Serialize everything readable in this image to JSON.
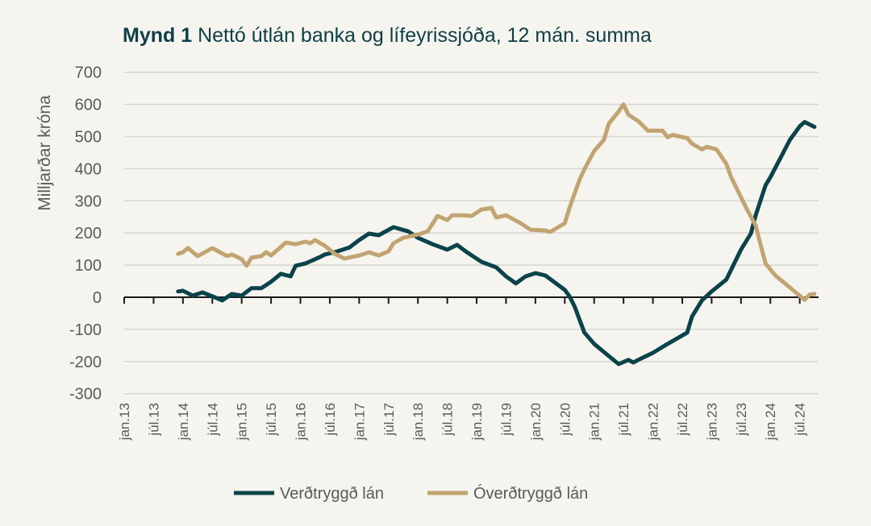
{
  "title": {
    "prefix": "Mynd 1",
    "text": "Nettó útlán banka og lífeyrissjóða, 12 mán. summa"
  },
  "chart_data": {
    "type": "line",
    "title": "Nettó útlán banka og lífeyrissjóða, 12 mán. summa",
    "ylabel": "Milljarðar króna",
    "xlabel": "",
    "ylim": [
      -300,
      700
    ],
    "yticks": [
      700,
      600,
      500,
      400,
      300,
      200,
      100,
      0,
      -100,
      -200,
      -300
    ],
    "xlim": [
      "2013-01",
      "2024-12"
    ],
    "xticks": [
      "jan.13",
      "júl.13",
      "jan.14",
      "júl.14",
      "jan.15",
      "júl.15",
      "jan.16",
      "júl.16",
      "jan.17",
      "júl.17",
      "jan.18",
      "júl.18",
      "jan.19",
      "júl.19",
      "jan.20",
      "júl.20",
      "jan.21",
      "júl.21",
      "jan.22",
      "júl.22",
      "jan.23",
      "júl.23",
      "jan.24",
      "júl.24"
    ],
    "grid": true,
    "legend": "bottom",
    "series": [
      {
        "name": "Verðtryggð lán",
        "color": "#0b434a",
        "points": [
          [
            "2013-12",
            18
          ],
          [
            "2014-01",
            20
          ],
          [
            "2014-03",
            5
          ],
          [
            "2014-05",
            15
          ],
          [
            "2014-07",
            3
          ],
          [
            "2014-09",
            -10
          ],
          [
            "2014-11",
            10
          ],
          [
            "2015-01",
            5
          ],
          [
            "2015-03",
            28
          ],
          [
            "2015-05",
            28
          ],
          [
            "2015-07",
            48
          ],
          [
            "2015-09",
            73
          ],
          [
            "2015-11",
            65
          ],
          [
            "2015-12",
            98
          ],
          [
            "2016-02",
            105
          ],
          [
            "2016-05",
            125
          ],
          [
            "2016-06",
            133
          ],
          [
            "2016-08",
            140
          ],
          [
            "2016-11",
            155
          ],
          [
            "2017-01",
            178
          ],
          [
            "2017-03",
            198
          ],
          [
            "2017-05",
            193
          ],
          [
            "2017-08",
            218
          ],
          [
            "2017-11",
            205
          ],
          [
            "2018-01",
            185
          ],
          [
            "2018-04",
            165
          ],
          [
            "2018-07",
            148
          ],
          [
            "2018-09",
            163
          ],
          [
            "2018-11",
            140
          ],
          [
            "2019-02",
            110
          ],
          [
            "2019-05",
            93
          ],
          [
            "2019-07",
            65
          ],
          [
            "2019-09",
            43
          ],
          [
            "2019-11",
            65
          ],
          [
            "2020-01",
            75
          ],
          [
            "2020-03",
            68
          ],
          [
            "2020-07",
            23
          ],
          [
            "2020-08",
            2
          ],
          [
            "2020-09",
            -28
          ],
          [
            "2020-11",
            -110
          ],
          [
            "2021-01",
            -145
          ],
          [
            "2021-04",
            -183
          ],
          [
            "2021-06",
            -208
          ],
          [
            "2021-08",
            -195
          ],
          [
            "2021-09",
            -203
          ],
          [
            "2021-10",
            -195
          ],
          [
            "2022-01",
            -173
          ],
          [
            "2022-04",
            -145
          ],
          [
            "2022-08",
            -110
          ],
          [
            "2022-09",
            -60
          ],
          [
            "2022-11",
            -10
          ],
          [
            "2023-01",
            18
          ],
          [
            "2023-04",
            55
          ],
          [
            "2023-07",
            148
          ],
          [
            "2023-09",
            198
          ],
          [
            "2023-10",
            255
          ],
          [
            "2023-12",
            348
          ],
          [
            "2024-01",
            373
          ],
          [
            "2024-05",
            490
          ],
          [
            "2024-07",
            532
          ],
          [
            "2024-08",
            545
          ],
          [
            "2024-10",
            530
          ]
        ]
      },
      {
        "name": "Óverðtryggð lán",
        "color": "#c2a472",
        "points": [
          [
            "2013-12",
            135
          ],
          [
            "2014-01",
            140
          ],
          [
            "2014-02",
            153
          ],
          [
            "2014-04",
            128
          ],
          [
            "2014-07",
            153
          ],
          [
            "2014-10",
            128
          ],
          [
            "2014-11",
            133
          ],
          [
            "2015-01",
            118
          ],
          [
            "2015-02",
            98
          ],
          [
            "2015-03",
            123
          ],
          [
            "2015-05",
            128
          ],
          [
            "2015-06",
            140
          ],
          [
            "2015-07",
            130
          ],
          [
            "2015-10",
            170
          ],
          [
            "2015-12",
            165
          ],
          [
            "2016-02",
            173
          ],
          [
            "2016-03",
            168
          ],
          [
            "2016-04",
            178
          ],
          [
            "2016-06",
            160
          ],
          [
            "2016-08",
            135
          ],
          [
            "2016-10",
            120
          ],
          [
            "2017-01",
            130
          ],
          [
            "2017-03",
            140
          ],
          [
            "2017-05",
            130
          ],
          [
            "2017-07",
            143
          ],
          [
            "2017-08",
            168
          ],
          [
            "2017-10",
            185
          ],
          [
            "2018-01",
            195
          ],
          [
            "2018-03",
            205
          ],
          [
            "2018-05",
            253
          ],
          [
            "2018-07",
            240
          ],
          [
            "2018-08",
            255
          ],
          [
            "2018-10",
            255
          ],
          [
            "2018-12",
            253
          ],
          [
            "2019-02",
            273
          ],
          [
            "2019-04",
            278
          ],
          [
            "2019-05",
            248
          ],
          [
            "2019-07",
            255
          ],
          [
            "2019-10",
            230
          ],
          [
            "2019-12",
            210
          ],
          [
            "2020-03",
            208
          ],
          [
            "2020-04",
            203
          ],
          [
            "2020-07",
            230
          ],
          [
            "2020-08",
            280
          ],
          [
            "2020-10",
            365
          ],
          [
            "2020-11",
            398
          ],
          [
            "2021-01",
            455
          ],
          [
            "2021-03",
            490
          ],
          [
            "2021-04",
            540
          ],
          [
            "2021-06",
            578
          ],
          [
            "2021-07",
            600
          ],
          [
            "2021-08",
            568
          ],
          [
            "2021-10",
            548
          ],
          [
            "2021-12",
            518
          ],
          [
            "2022-03",
            518
          ],
          [
            "2022-04",
            498
          ],
          [
            "2022-05",
            505
          ],
          [
            "2022-08",
            495
          ],
          [
            "2022-09",
            478
          ],
          [
            "2022-11",
            460
          ],
          [
            "2022-12",
            468
          ],
          [
            "2023-02",
            460
          ],
          [
            "2023-04",
            415
          ],
          [
            "2023-05",
            373
          ],
          [
            "2023-08",
            280
          ],
          [
            "2023-10",
            223
          ],
          [
            "2023-12",
            105
          ],
          [
            "2024-02",
            68
          ],
          [
            "2024-05",
            30
          ],
          [
            "2024-08",
            -8
          ],
          [
            "2024-09",
            8
          ],
          [
            "2024-10",
            10
          ]
        ]
      }
    ]
  }
}
